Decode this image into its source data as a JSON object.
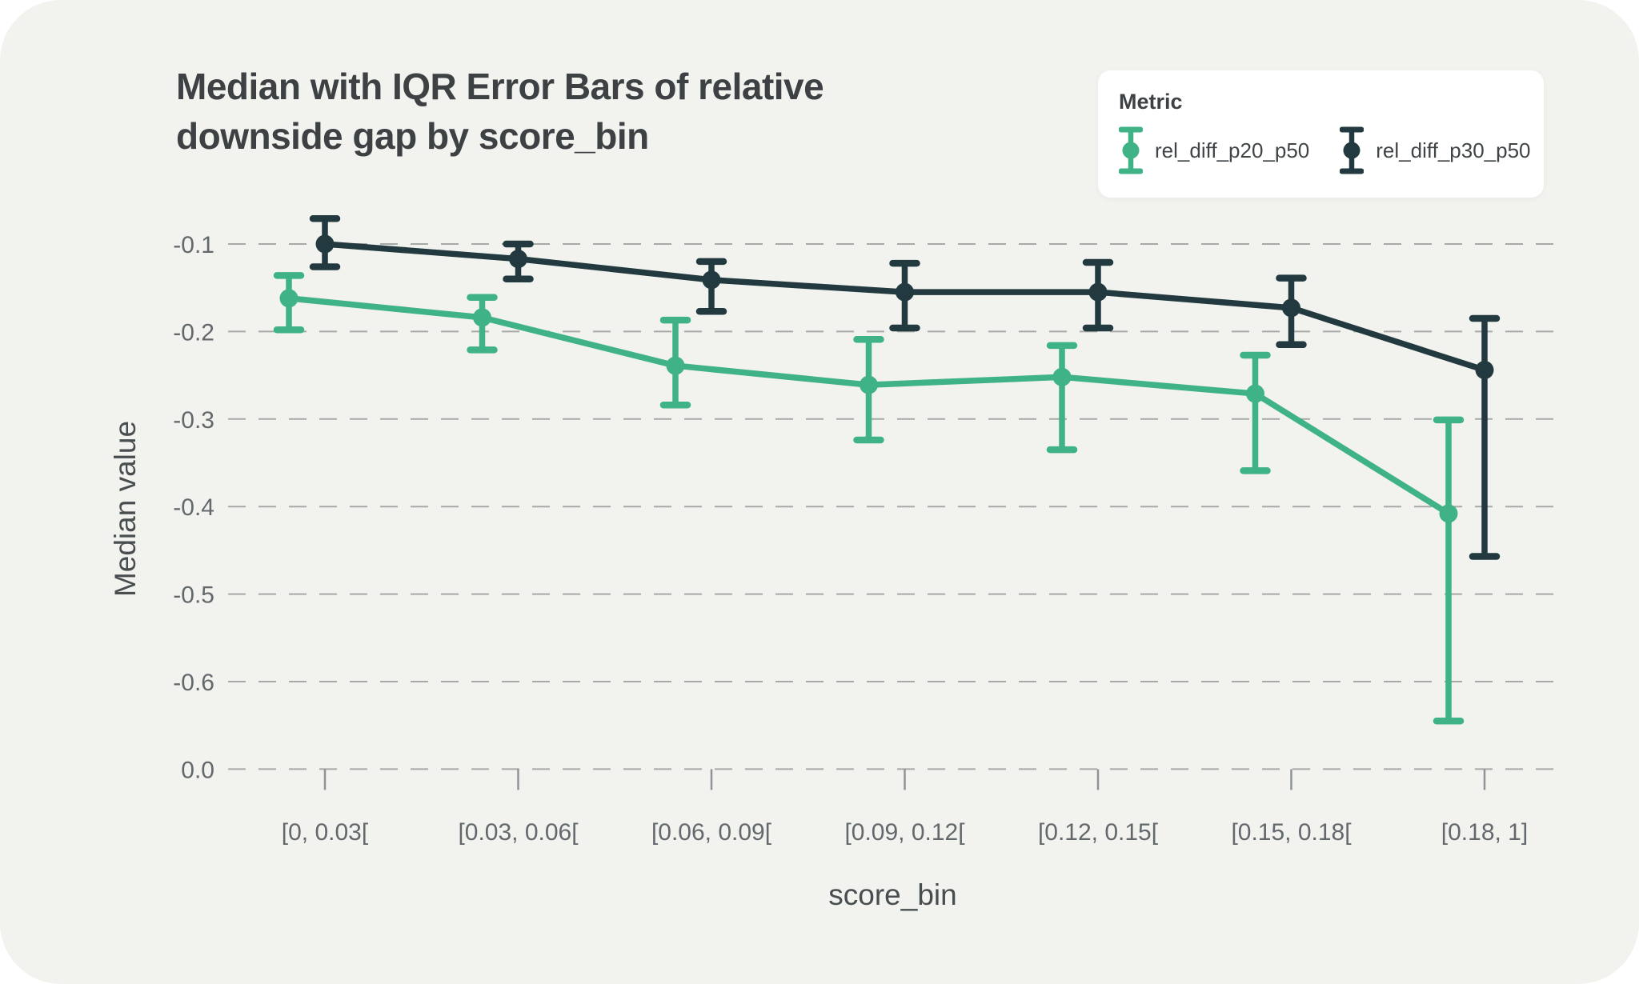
{
  "title": "Median with IQR Error Bars of relative downside gap by score_bin",
  "chart_data": {
    "type": "line",
    "subtype": "median-with-iqr-error-bars",
    "title": "Median with IQR Error Bars of relative downside gap by score_bin",
    "xlabel": "score_bin",
    "ylabel": "Median value",
    "legend_title": "Metric",
    "legend_position": "top-right",
    "grid": "dashed-horizontal",
    "error_bars": "IQR",
    "background_color": "#f2f2ef",
    "categories": [
      "[0, 0.03[",
      "[0.03, 0.06[",
      "[0.06, 0.09[",
      "[0.09, 0.12[",
      "[0.12, 0.15[",
      "[0.15, 0.18[",
      "[0.18, 1]"
    ],
    "y_tick_labels": [
      "-0.1",
      "-0.2",
      "-0.3",
      "-0.4",
      "-0.5",
      "-0.6",
      "0.0"
    ],
    "series": [
      {
        "name": "rel_diff_p20_p50",
        "color": "#3fb286",
        "median": [
          -0.162,
          -0.184,
          -0.239,
          -0.261,
          -0.252,
          -0.271,
          -0.408
        ],
        "iqr_upper": [
          -0.136,
          -0.161,
          -0.187,
          -0.209,
          -0.216,
          -0.227,
          -0.301
        ],
        "iqr_lower": [
          -0.198,
          -0.221,
          -0.284,
          -0.324,
          -0.335,
          -0.359,
          -0.645
        ]
      },
      {
        "name": "rel_diff_p30_p50",
        "color": "#223a3f",
        "median": [
          -0.1,
          -0.117,
          -0.141,
          -0.155,
          -0.155,
          -0.173,
          -0.244
        ],
        "iqr_upper": [
          -0.071,
          -0.1,
          -0.12,
          -0.122,
          -0.121,
          -0.139,
          -0.185
        ],
        "iqr_lower": [
          -0.126,
          -0.14,
          -0.177,
          -0.196,
          -0.196,
          -0.215,
          -0.457
        ]
      }
    ]
  }
}
